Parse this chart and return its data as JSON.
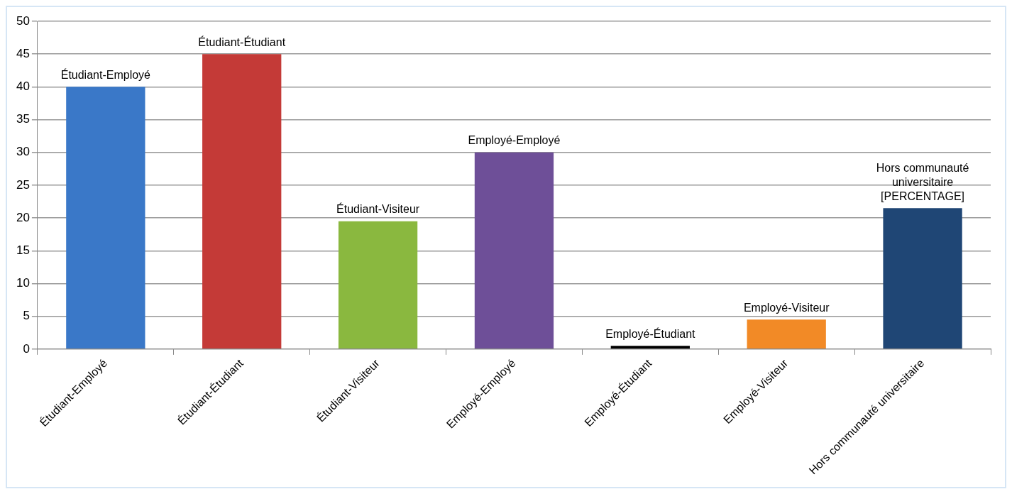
{
  "chart_data": {
    "type": "bar",
    "categories": [
      "Étudiant-Employé",
      "Étudiant-Étudiant",
      "Étudiant-Visiteur",
      "Employé-Employé",
      "Employé-Étudiant",
      "Employé-Visiteur",
      "Hors communauté universitaire"
    ],
    "values": [
      40,
      45,
      19.5,
      30,
      0.5,
      4.5,
      21.5
    ],
    "colors": [
      "#3a78c8",
      "#c43a37",
      "#8ab83f",
      "#6e4f98",
      "#000000",
      "#f28a26",
      "#1f4675"
    ],
    "ylim": [
      0,
      50
    ],
    "yticks": [
      0,
      5,
      10,
      15,
      20,
      25,
      30,
      35,
      40,
      45,
      50
    ],
    "grid": "y",
    "annotations": [
      {
        "text": "Étudiant-Employé",
        "x": "Étudiant-Employé",
        "y": 40
      },
      {
        "text": "Étudiant-Étudiant",
        "x": "Étudiant-Étudiant",
        "y": 45
      },
      {
        "text": "Étudiant-Visiteur",
        "x": "Étudiant-Visiteur",
        "y": 19.5
      },
      {
        "text": "Employé-Employé",
        "x": "Employé-Employé",
        "y": 30
      },
      {
        "text": "Employé-Étudiant",
        "x": "Employé-Étudiant",
        "y": 0.5
      },
      {
        "text": "Employé-Visiteur",
        "x": "Employé-Visiteur",
        "y": 4.5
      },
      {
        "text": "Hors communauté universitaire [PERCENTAGE]",
        "x": "Hors communauté universitaire",
        "y": 21.5
      }
    ]
  }
}
